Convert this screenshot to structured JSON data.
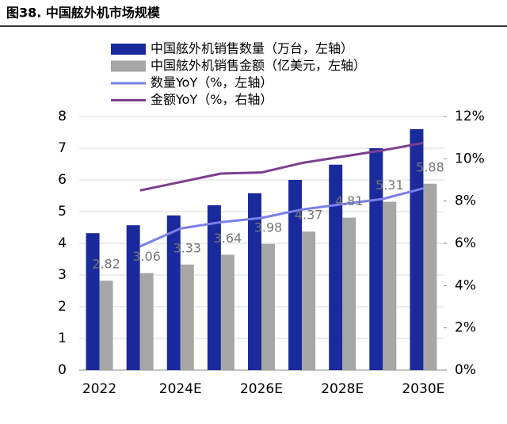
{
  "chart_data": {
    "type": "bar",
    "title": "图38. 中国舷外机市场规模",
    "categories": [
      "2022",
      null,
      "2024E",
      null,
      "2026E",
      null,
      "2028E",
      null,
      "2030E"
    ],
    "series": [
      {
        "name": "中国舷外机销售数量（万台，左轴）",
        "type": "bar",
        "color": "#1a2a9c",
        "values": [
          4.32,
          4.57,
          4.88,
          5.2,
          5.58,
          6.0,
          6.48,
          7.0,
          7.6
        ]
      },
      {
        "name": "中国舷外机销售金额（亿美元，左轴）",
        "type": "bar",
        "color": "#a6a6a6",
        "values": [
          2.82,
          3.06,
          3.33,
          3.64,
          3.98,
          4.37,
          4.81,
          5.31,
          5.88
        ],
        "data_labels": true
      },
      {
        "name": "数量YoY（%，左轴）",
        "type": "line",
        "axis": "y2",
        "color": "#7b7fe8",
        "values": [
          null,
          5.85,
          6.7,
          7.0,
          7.2,
          7.6,
          7.85,
          8.1,
          8.6
        ]
      },
      {
        "name": "金额YoY（%，右轴）",
        "type": "line",
        "axis": "y2",
        "color": "#7b3f8e",
        "values": [
          null,
          8.5,
          8.9,
          9.3,
          9.35,
          9.8,
          10.1,
          10.4,
          10.75
        ]
      }
    ],
    "ylim": [
      0,
      8
    ],
    "yticks": [
      0,
      1,
      2,
      3,
      4,
      5,
      6,
      7,
      8
    ],
    "y2lim": [
      0,
      12
    ],
    "y2ticks": [
      {
        "value": 0,
        "label": "0%"
      },
      {
        "value": 2,
        "label": "2%"
      },
      {
        "value": 4,
        "label": "4%"
      },
      {
        "value": 6,
        "label": "6%"
      },
      {
        "value": 8,
        "label": "8%"
      },
      {
        "value": 10,
        "label": "10%"
      },
      {
        "value": 12,
        "label": "12%"
      }
    ],
    "grid": true
  }
}
